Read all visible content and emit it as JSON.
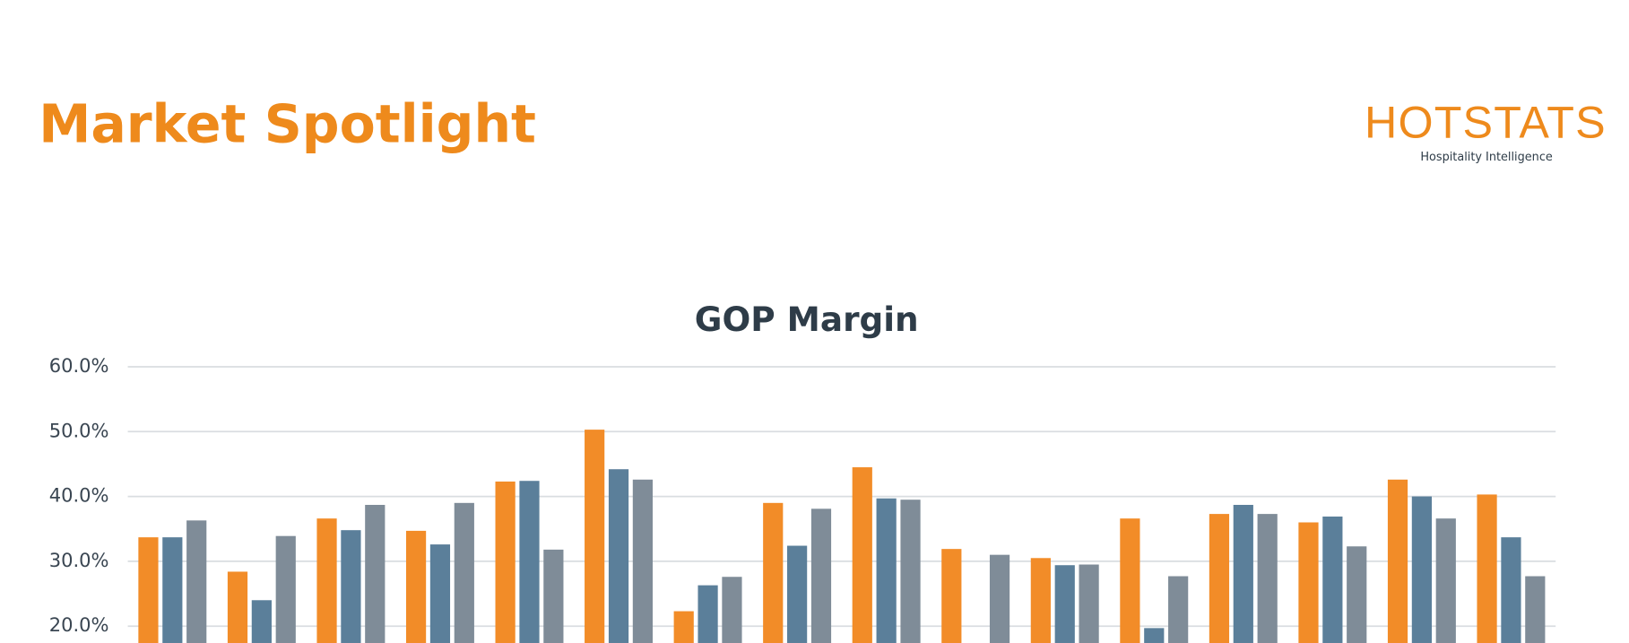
{
  "header": {
    "title": "Market Spotlight",
    "logo": "HOTSTATS",
    "tagline": "Hospitality Intelligence"
  },
  "chart_data": {
    "type": "bar",
    "title": "GOP Margin",
    "categories": [
      null,
      null,
      null,
      null,
      null,
      null,
      null,
      null,
      null,
      null,
      null,
      null,
      null,
      null,
      null,
      null
    ],
    "series": [
      {
        "color": "#f28c28",
        "values": [
          33.7,
          28.4,
          36.6,
          34.7,
          42.3,
          50.3,
          22.3,
          39.0,
          44.5,
          31.9,
          30.5,
          36.6,
          37.3,
          36.0,
          42.6,
          40.3
        ]
      },
      {
        "color": "#5b7f9a",
        "values": [
          33.7,
          24.0,
          34.8,
          32.6,
          42.4,
          44.2,
          26.3,
          32.4,
          39.7,
          null,
          29.4,
          19.7,
          38.7,
          36.9,
          40.0,
          33.7
        ]
      },
      {
        "color": "#7f8c98",
        "values": [
          36.3,
          33.9,
          38.7,
          39.0,
          31.8,
          42.6,
          27.6,
          38.1,
          39.5,
          31.0,
          29.5,
          27.7,
          37.3,
          32.3,
          36.6,
          27.7
        ]
      }
    ],
    "ylim": [
      17.4,
      60
    ],
    "yticks": [
      {
        "value": 20,
        "label": "20.0%"
      },
      {
        "value": 30,
        "label": "30.0%"
      },
      {
        "value": 40,
        "label": "40.0%"
      },
      {
        "value": 50,
        "label": "50.0%"
      },
      {
        "value": 60,
        "label": "60.0%"
      }
    ],
    "grid": true
  }
}
